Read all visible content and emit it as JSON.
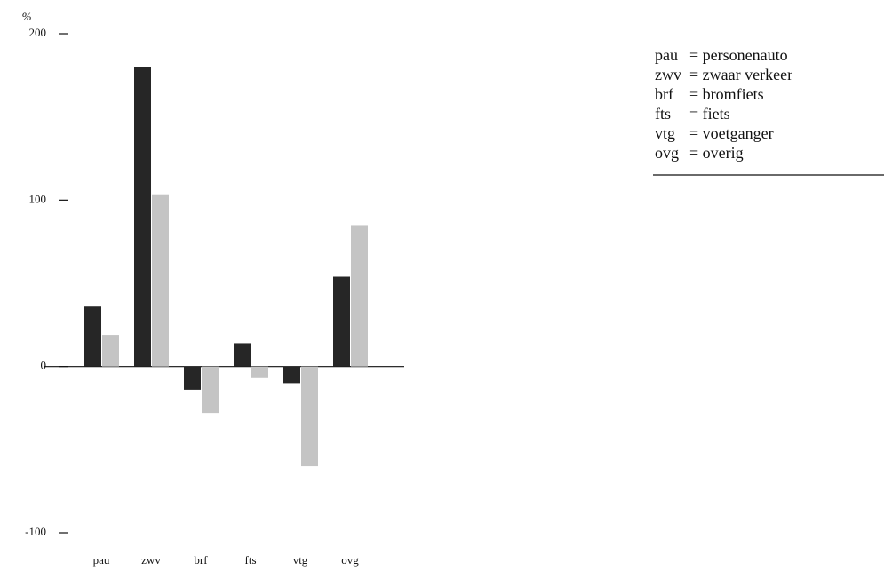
{
  "chart_data": {
    "type": "bar",
    "y_label": "%",
    "categories": [
      "pau",
      "zwv",
      "brf",
      "fts",
      "vtg",
      "ovg"
    ],
    "series": [
      {
        "color": "#262626",
        "values": [
          36,
          180,
          -14,
          14,
          -10,
          54
        ]
      },
      {
        "color": "#c4c4c4",
        "values": [
          19,
          103,
          -28,
          -7,
          -60,
          85
        ]
      }
    ],
    "ylim": [
      -100,
      200
    ],
    "yticks": [
      -100,
      0,
      100,
      200
    ],
    "key": [
      {
        "abbr": "pau",
        "text": "= personenauto"
      },
      {
        "abbr": "zwv",
        "text": "= zwaar verkeer"
      },
      {
        "abbr": "brf",
        "text": "= bromfiets"
      },
      {
        "abbr": "fts",
        "text": "= fiets"
      },
      {
        "abbr": "vtg",
        "text": "= voetganger"
      },
      {
        "abbr": "ovg",
        "text": "= overig"
      }
    ]
  }
}
